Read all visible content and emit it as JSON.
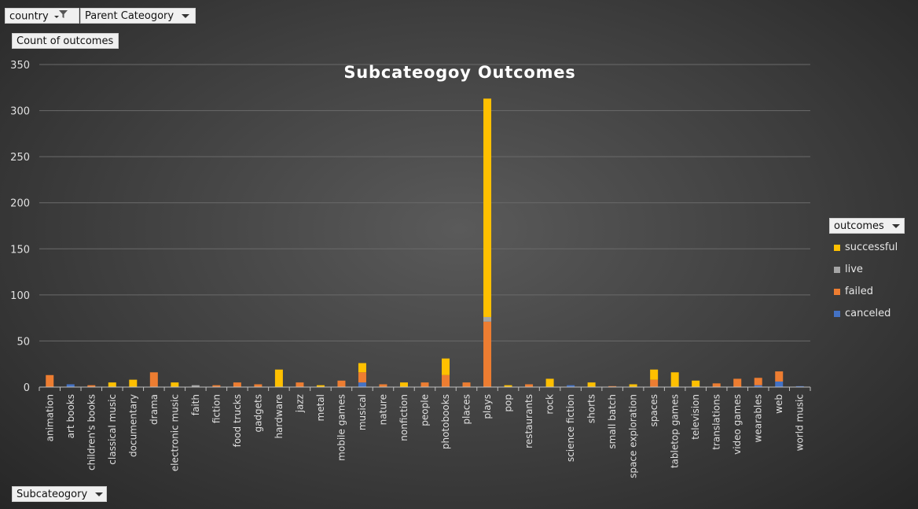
{
  "filters": {
    "country": "country",
    "parent_category": "Parent Cateogory",
    "value_field": "Count of outcomes",
    "axis_field": "Subcateogory",
    "legend_field": "outcomes"
  },
  "colors": {
    "successful": "#ffc000",
    "live": "#a5a5a5",
    "failed": "#ed7d31",
    "canceled": "#4472c4"
  },
  "chart_data": {
    "type": "bar",
    "stacked": true,
    "title": "Subcateogoy  Outcomes",
    "xlabel": "",
    "ylabel": "",
    "ylim": [
      0,
      350
    ],
    "yticks": [
      0,
      50,
      100,
      150,
      200,
      250,
      300,
      350
    ],
    "grid": true,
    "legend_position": "right",
    "categories": [
      "animation",
      "art books",
      "children's books",
      "classical music",
      "documentary",
      "drama",
      "electronic music",
      "faith",
      "fiction",
      "food trucks",
      "gadgets",
      "hardware",
      "jazz",
      "metal",
      "mobile games",
      "musical",
      "nature",
      "nonfiction",
      "people",
      "photobooks",
      "places",
      "plays",
      "pop",
      "restaurants",
      "rock",
      "science fiction",
      "shorts",
      "small batch",
      "space exploration",
      "spaces",
      "tabletop games",
      "television",
      "translations",
      "video games",
      "wearables",
      "web",
      "world music"
    ],
    "series": [
      {
        "name": "canceled",
        "values": [
          0,
          3,
          0,
          0,
          0,
          0,
          0,
          0,
          0,
          0,
          0,
          0,
          0,
          0,
          0,
          5,
          0,
          0,
          0,
          0,
          0,
          0,
          0,
          0,
          0,
          2,
          0,
          0,
          0,
          0,
          0,
          0,
          0,
          0,
          2,
          6,
          1
        ]
      },
      {
        "name": "failed",
        "values": [
          13,
          0,
          2,
          0,
          0,
          16,
          0,
          0,
          2,
          5,
          3,
          0,
          5,
          0,
          7,
          11,
          3,
          0,
          5,
          13,
          5,
          71,
          0,
          3,
          0,
          0,
          0,
          1,
          0,
          8,
          0,
          0,
          4,
          9,
          8,
          11,
          0
        ]
      },
      {
        "name": "live",
        "values": [
          0,
          0,
          0,
          0,
          0,
          0,
          0,
          2,
          0,
          0,
          0,
          0,
          0,
          0,
          0,
          0,
          0,
          0,
          0,
          0,
          0,
          5,
          0,
          0,
          0,
          0,
          0,
          0,
          0,
          0,
          0,
          0,
          0,
          0,
          0,
          0,
          0
        ]
      },
      {
        "name": "successful",
        "values": [
          0,
          0,
          0,
          5,
          8,
          0,
          5,
          0,
          0,
          0,
          0,
          19,
          0,
          2,
          0,
          10,
          0,
          5,
          0,
          18,
          0,
          237,
          2,
          0,
          9,
          0,
          5,
          0,
          3,
          11,
          16,
          7,
          0,
          0,
          0,
          0,
          0
        ]
      }
    ]
  }
}
